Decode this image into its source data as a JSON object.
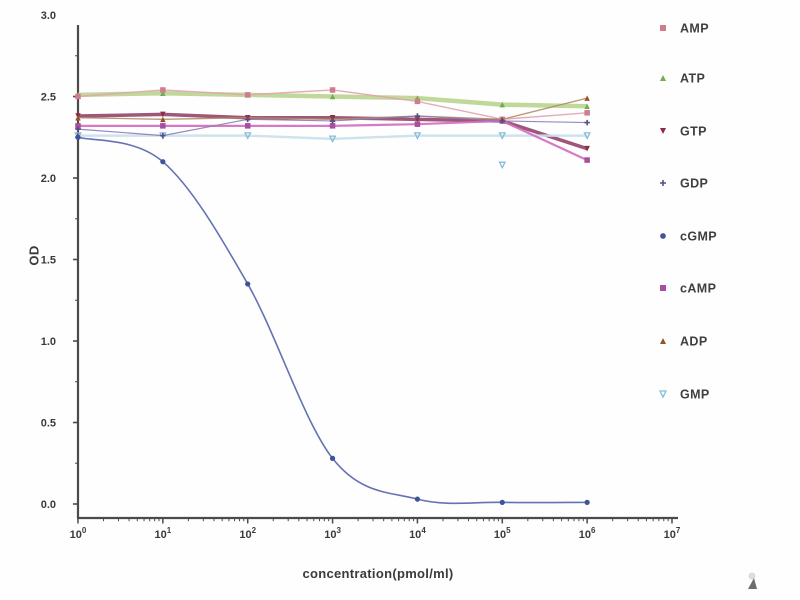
{
  "chart_data": {
    "type": "line",
    "title": "",
    "xlabel": "concentration(pmol/ml)",
    "ylabel": "OD",
    "x_scale": "log10",
    "grid": false,
    "legend_position": "right",
    "x_axis": {
      "tick_base": "10",
      "tick_exponents": [
        0,
        1,
        2,
        3,
        4,
        5,
        6,
        7
      ]
    },
    "y_axis": {
      "ticks": [
        "0.0",
        "0.5",
        "1.0",
        "1.5",
        "2.0",
        "2.5",
        "3.0"
      ],
      "range": [
        0.0,
        3.0
      ]
    },
    "x": [
      1,
      10,
      100,
      1000,
      10000,
      100000,
      1000000
    ],
    "series": [
      {
        "name": "AMP",
        "marker": "square",
        "marker_color": "#cf7d8e",
        "line_color": "#e2a3af",
        "line_width": 1.4,
        "smooth": false,
        "values": [
          2.5,
          2.54,
          2.51,
          2.54,
          2.47,
          2.36,
          2.4
        ]
      },
      {
        "name": "ATP",
        "marker": "triangle-up",
        "marker_color": "#6fae4e",
        "line_color": "#b9d58f",
        "line_width": 4.5,
        "smooth": false,
        "values": [
          2.51,
          2.52,
          2.51,
          2.5,
          2.49,
          2.45,
          2.44
        ]
      },
      {
        "name": "GTP",
        "marker": "triangle-down",
        "marker_color": "#8a2c44",
        "line_color": "#93446a",
        "line_width": 3.5,
        "smooth": false,
        "values": [
          2.38,
          2.39,
          2.37,
          2.37,
          2.36,
          2.35,
          2.18
        ]
      },
      {
        "name": "GDP",
        "marker": "plus",
        "marker_color": "#5c4b8c",
        "line_color": "#8d7cb4",
        "line_width": 1.2,
        "smooth": false,
        "values": [
          2.3,
          2.26,
          2.36,
          2.35,
          2.38,
          2.35,
          2.34
        ]
      },
      {
        "name": "cGMP",
        "marker": "circle",
        "marker_color": "#3f5398",
        "line_color": "#6473b1",
        "line_width": 1.6,
        "smooth": true,
        "values": [
          2.25,
          2.1,
          1.35,
          0.28,
          0.03,
          0.01,
          0.01
        ]
      },
      {
        "name": "cAMP",
        "marker": "square",
        "marker_color": "#a44fa0",
        "line_color": "#d36cc0",
        "line_width": 2.2,
        "smooth": false,
        "values": [
          2.32,
          2.32,
          2.32,
          2.32,
          2.33,
          2.35,
          2.11
        ]
      },
      {
        "name": "ADP",
        "marker": "triangle-up",
        "marker_color": "#96522a",
        "line_color": "#b18a64",
        "line_width": 1.3,
        "smooth": false,
        "values": [
          2.37,
          2.36,
          2.37,
          2.36,
          2.38,
          2.36,
          2.49
        ]
      },
      {
        "name": "GMP",
        "marker": "triangle-down-open",
        "marker_color": "#85bcd8",
        "line_color": "#c9e0ec",
        "line_width": 2.4,
        "smooth": false,
        "values": [
          2.26,
          2.26,
          2.26,
          2.24,
          2.26,
          2.26,
          2.26
        ]
      }
    ],
    "outlier_markers": [
      {
        "series": "GMP",
        "x": 100000,
        "value": 2.08
      }
    ]
  }
}
